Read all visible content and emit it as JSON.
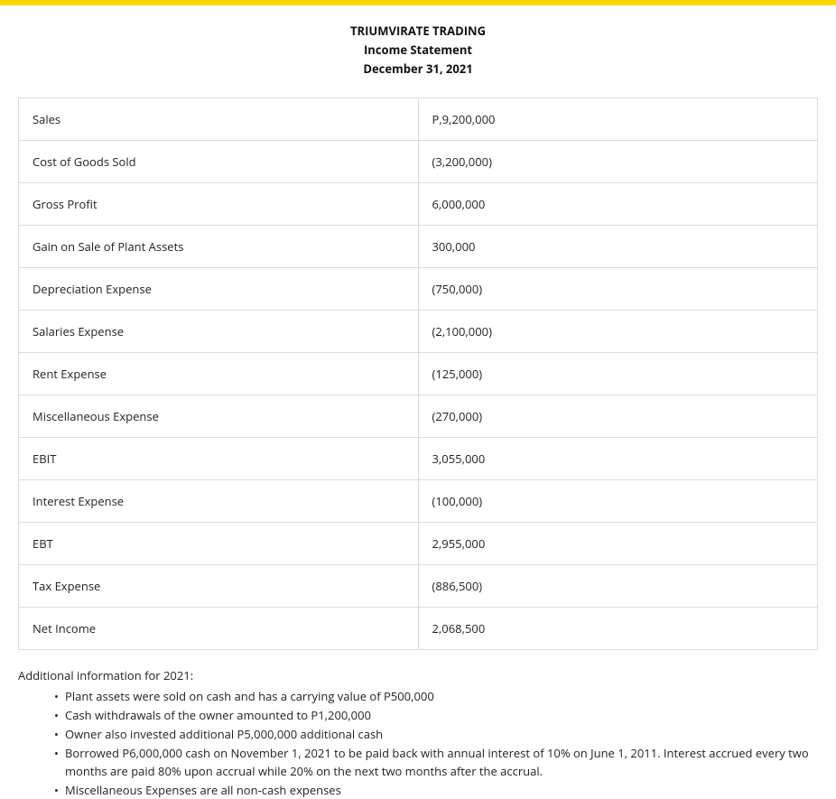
{
  "top_bar_color": "#ffd600",
  "header": {
    "company": "TRIUMVIRATE TRADING",
    "title": "Income Statement",
    "date": "December 31, 2021"
  },
  "table": {
    "columns": [
      "label",
      "value"
    ],
    "rows": [
      {
        "label": "Sales",
        "value": "P,9,200,000"
      },
      {
        "label": "Cost of Goods Sold",
        "value": "(3,200,000)"
      },
      {
        "label": "Gross Profit",
        "value": "6,000,000"
      },
      {
        "label": "Gain on Sale of Plant Assets",
        "value": "300,000"
      },
      {
        "label": "Depreciation Expense",
        "value": "(750,000)"
      },
      {
        "label": "Salaries Expense",
        "value": "(2,100,000)"
      },
      {
        "label": "Rent Expense",
        "value": "(125,000)"
      },
      {
        "label": "Miscellaneous Expense",
        "value": "(270,000)"
      },
      {
        "label": "EBIT",
        "value": "3,055,000"
      },
      {
        "label": "Interest Expense",
        "value": "(100,000)"
      },
      {
        "label": "EBT",
        "value": "2,955,000"
      },
      {
        "label": "Tax Expense",
        "value": "(886,500)"
      },
      {
        "label": "Net Income",
        "value": "2,068,500"
      }
    ],
    "border_color": "#dcdcdc",
    "cell_fontsize": 13
  },
  "additional": {
    "heading": "Additional information for 2021:",
    "items": [
      "Plant assets were sold on cash and has a carrying value of P500,000",
      "Cash withdrawals of the owner amounted to P1,200,000",
      "Owner also invested additional P5,000,000 additional cash",
      "Borrowed P6,000,000 cash on November 1, 2021 to be paid back with annual interest of 10% on June 1, 2011. Interest accrued every two months are paid 80% upon accrual while 20% on the next two months after the accrual.",
      "Miscellaneous Expenses are all non-cash expenses"
    ]
  }
}
